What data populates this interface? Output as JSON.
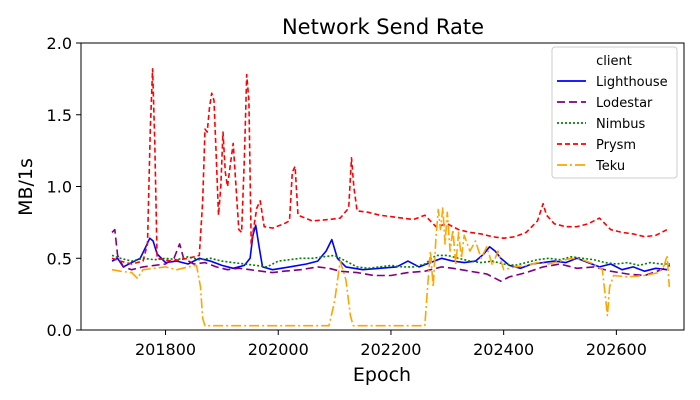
{
  "chart_data": {
    "type": "line",
    "title": "Network Send Rate",
    "xlabel": "Epoch",
    "ylabel": "MB/1s",
    "xlim": [
      201650,
      202720
    ],
    "ylim": [
      0.0,
      2.0
    ],
    "xticks": [
      201800,
      202000,
      202200,
      202400,
      202600
    ],
    "xtick_labels": [
      "201800",
      "202000",
      "202200",
      "202400",
      "202600"
    ],
    "yticks": [
      0.0,
      0.5,
      1.0,
      1.5,
      2.0
    ],
    "ytick_labels": [
      "0.0",
      "0.5",
      "1.0",
      "1.5",
      "2.0"
    ],
    "grid": false,
    "legend": {
      "title": "client",
      "placement": "top-right"
    },
    "series": [
      {
        "name": "Lighthouse",
        "color": "#0000ff",
        "dash": "solid",
        "points": [
          [
            201705,
            0.48
          ],
          [
            201715,
            0.5
          ],
          [
            201725,
            0.44
          ],
          [
            201740,
            0.47
          ],
          [
            201755,
            0.5
          ],
          [
            201765,
            0.58
          ],
          [
            201772,
            0.64
          ],
          [
            201778,
            0.62
          ],
          [
            201785,
            0.53
          ],
          [
            201800,
            0.47
          ],
          [
            201820,
            0.48
          ],
          [
            201840,
            0.46
          ],
          [
            201860,
            0.5
          ],
          [
            201880,
            0.48
          ],
          [
            201900,
            0.45
          ],
          [
            201920,
            0.43
          ],
          [
            201940,
            0.45
          ],
          [
            201950,
            0.5
          ],
          [
            201955,
            0.66
          ],
          [
            201960,
            0.73
          ],
          [
            201966,
            0.58
          ],
          [
            201972,
            0.44
          ],
          [
            201990,
            0.42
          ],
          [
            202020,
            0.44
          ],
          [
            202050,
            0.46
          ],
          [
            202070,
            0.48
          ],
          [
            202085,
            0.55
          ],
          [
            202095,
            0.63
          ],
          [
            202105,
            0.5
          ],
          [
            202120,
            0.44
          ],
          [
            202150,
            0.42
          ],
          [
            202180,
            0.43
          ],
          [
            202210,
            0.44
          ],
          [
            202230,
            0.48
          ],
          [
            202250,
            0.44
          ],
          [
            202270,
            0.47
          ],
          [
            202290,
            0.5
          ],
          [
            202310,
            0.48
          ],
          [
            202330,
            0.47
          ],
          [
            202350,
            0.48
          ],
          [
            202365,
            0.53
          ],
          [
            202375,
            0.58
          ],
          [
            202385,
            0.55
          ],
          [
            202395,
            0.5
          ],
          [
            202410,
            0.45
          ],
          [
            202430,
            0.43
          ],
          [
            202450,
            0.46
          ],
          [
            202470,
            0.47
          ],
          [
            202490,
            0.48
          ],
          [
            202510,
            0.47
          ],
          [
            202530,
            0.5
          ],
          [
            202550,
            0.47
          ],
          [
            202570,
            0.44
          ],
          [
            202590,
            0.46
          ],
          [
            202610,
            0.42
          ],
          [
            202630,
            0.44
          ],
          [
            202650,
            0.41
          ],
          [
            202670,
            0.43
          ],
          [
            202690,
            0.42
          ]
        ]
      },
      {
        "name": "Lodestar",
        "color": "#800080",
        "dash": "8,4",
        "points": [
          [
            201705,
            0.68
          ],
          [
            201710,
            0.7
          ],
          [
            201715,
            0.52
          ],
          [
            201725,
            0.44
          ],
          [
            201740,
            0.42
          ],
          [
            201760,
            0.44
          ],
          [
            201780,
            0.45
          ],
          [
            201800,
            0.46
          ],
          [
            201815,
            0.5
          ],
          [
            201825,
            0.6
          ],
          [
            201832,
            0.5
          ],
          [
            201850,
            0.46
          ],
          [
            201870,
            0.47
          ],
          [
            201890,
            0.44
          ],
          [
            201910,
            0.42
          ],
          [
            201930,
            0.43
          ],
          [
            201950,
            0.42
          ],
          [
            201970,
            0.41
          ],
          [
            201990,
            0.4
          ],
          [
            202010,
            0.41
          ],
          [
            202040,
            0.42
          ],
          [
            202070,
            0.44
          ],
          [
            202090,
            0.43
          ],
          [
            202110,
            0.41
          ],
          [
            202140,
            0.4
          ],
          [
            202170,
            0.38
          ],
          [
            202200,
            0.38
          ],
          [
            202230,
            0.4
          ],
          [
            202260,
            0.41
          ],
          [
            202290,
            0.44
          ],
          [
            202310,
            0.43
          ],
          [
            202340,
            0.41
          ],
          [
            202370,
            0.39
          ],
          [
            202395,
            0.34
          ],
          [
            202410,
            0.37
          ],
          [
            202440,
            0.4
          ],
          [
            202470,
            0.44
          ],
          [
            202500,
            0.46
          ],
          [
            202530,
            0.43
          ],
          [
            202560,
            0.44
          ],
          [
            202590,
            0.41
          ],
          [
            202620,
            0.39
          ],
          [
            202650,
            0.38
          ],
          [
            202680,
            0.42
          ],
          [
            202695,
            0.45
          ]
        ]
      },
      {
        "name": "Nimbus",
        "color": "#008000",
        "dash": "2,2",
        "points": [
          [
            201705,
            0.52
          ],
          [
            201720,
            0.5
          ],
          [
            201740,
            0.48
          ],
          [
            201760,
            0.5
          ],
          [
            201780,
            0.49
          ],
          [
            201800,
            0.5
          ],
          [
            201820,
            0.49
          ],
          [
            201840,
            0.51
          ],
          [
            201860,
            0.49
          ],
          [
            201880,
            0.5
          ],
          [
            201900,
            0.48
          ],
          [
            201920,
            0.47
          ],
          [
            201940,
            0.46
          ],
          [
            201960,
            0.45
          ],
          [
            201980,
            0.44
          ],
          [
            202000,
            0.48
          ],
          [
            202020,
            0.49
          ],
          [
            202040,
            0.5
          ],
          [
            202060,
            0.5
          ],
          [
            202080,
            0.51
          ],
          [
            202100,
            0.52
          ],
          [
            202120,
            0.48
          ],
          [
            202140,
            0.44
          ],
          [
            202160,
            0.43
          ],
          [
            202180,
            0.44
          ],
          [
            202200,
            0.45
          ],
          [
            202220,
            0.44
          ],
          [
            202240,
            0.44
          ],
          [
            202260,
            0.46
          ],
          [
            202280,
            0.52
          ],
          [
            202300,
            0.52
          ],
          [
            202320,
            0.5
          ],
          [
            202340,
            0.48
          ],
          [
            202360,
            0.47
          ],
          [
            202380,
            0.48
          ],
          [
            202400,
            0.46
          ],
          [
            202420,
            0.45
          ],
          [
            202440,
            0.47
          ],
          [
            202460,
            0.49
          ],
          [
            202480,
            0.5
          ],
          [
            202500,
            0.49
          ],
          [
            202520,
            0.51
          ],
          [
            202540,
            0.5
          ],
          [
            202560,
            0.49
          ],
          [
            202580,
            0.47
          ],
          [
            202600,
            0.46
          ],
          [
            202620,
            0.47
          ],
          [
            202640,
            0.45
          ],
          [
            202660,
            0.47
          ],
          [
            202680,
            0.46
          ],
          [
            202695,
            0.46
          ]
        ]
      },
      {
        "name": "Prysm",
        "color": "#ff0000",
        "dash": "5,3",
        "points": [
          [
            201705,
            0.5
          ],
          [
            201720,
            0.48
          ],
          [
            201740,
            0.46
          ],
          [
            201760,
            0.48
          ],
          [
            201768,
            0.6
          ],
          [
            201773,
            1.4
          ],
          [
            201777,
            1.82
          ],
          [
            201781,
            1.3
          ],
          [
            201785,
            0.5
          ],
          [
            201810,
            0.48
          ],
          [
            201840,
            0.5
          ],
          [
            201860,
            0.52
          ],
          [
            201866,
            0.9
          ],
          [
            201870,
            1.4
          ],
          [
            201874,
            1.38
          ],
          [
            201878,
            1.55
          ],
          [
            201882,
            1.65
          ],
          [
            201886,
            1.6
          ],
          [
            201890,
            1.2
          ],
          [
            201894,
            0.8
          ],
          [
            201898,
            1.0
          ],
          [
            201902,
            1.38
          ],
          [
            201906,
            1.1
          ],
          [
            201910,
            1.0
          ],
          [
            201915,
            1.15
          ],
          [
            201920,
            1.3
          ],
          [
            201925,
            1.0
          ],
          [
            201930,
            0.7
          ],
          [
            201935,
            0.68
          ],
          [
            201940,
            1.2
          ],
          [
            201944,
            1.78
          ],
          [
            201948,
            1.6
          ],
          [
            201952,
            0.6
          ],
          [
            201956,
            0.7
          ],
          [
            201962,
            0.85
          ],
          [
            201968,
            0.9
          ],
          [
            201975,
            0.72
          ],
          [
            201990,
            0.71
          ],
          [
            202010,
            0.74
          ],
          [
            202020,
            0.76
          ],
          [
            202025,
            1.1
          ],
          [
            202030,
            1.14
          ],
          [
            202035,
            0.8
          ],
          [
            202060,
            0.76
          ],
          [
            202090,
            0.77
          ],
          [
            202110,
            0.78
          ],
          [
            202125,
            0.85
          ],
          [
            202130,
            1.2
          ],
          [
            202134,
            1.0
          ],
          [
            202140,
            0.83
          ],
          [
            202160,
            0.82
          ],
          [
            202180,
            0.8
          ],
          [
            202200,
            0.79
          ],
          [
            202220,
            0.78
          ],
          [
            202240,
            0.77
          ],
          [
            202260,
            0.8
          ],
          [
            202280,
            0.72
          ],
          [
            202300,
            0.74
          ],
          [
            202320,
            0.7
          ],
          [
            202340,
            0.68
          ],
          [
            202360,
            0.67
          ],
          [
            202380,
            0.65
          ],
          [
            202400,
            0.64
          ],
          [
            202420,
            0.65
          ],
          [
            202440,
            0.68
          ],
          [
            202460,
            0.76
          ],
          [
            202470,
            0.88
          ],
          [
            202476,
            0.8
          ],
          [
            202490,
            0.74
          ],
          [
            202510,
            0.72
          ],
          [
            202530,
            0.72
          ],
          [
            202550,
            0.74
          ],
          [
            202570,
            0.78
          ],
          [
            202590,
            0.7
          ],
          [
            202610,
            0.68
          ],
          [
            202630,
            0.67
          ],
          [
            202650,
            0.65
          ],
          [
            202670,
            0.66
          ],
          [
            202690,
            0.7
          ]
        ]
      },
      {
        "name": "Teku",
        "color": "#ffa500",
        "dash": "10,3,2,3",
        "points": [
          [
            201705,
            0.42
          ],
          [
            201720,
            0.41
          ],
          [
            201740,
            0.4
          ],
          [
            201750,
            0.36
          ],
          [
            201760,
            0.42
          ],
          [
            201780,
            0.43
          ],
          [
            201800,
            0.44
          ],
          [
            201820,
            0.42
          ],
          [
            201840,
            0.44
          ],
          [
            201855,
            0.45
          ],
          [
            201862,
            0.3
          ],
          [
            201866,
            0.08
          ],
          [
            201870,
            0.03
          ],
          [
            201920,
            0.03
          ],
          [
            201960,
            0.03
          ],
          [
            202000,
            0.03
          ],
          [
            202040,
            0.03
          ],
          [
            202090,
            0.03
          ],
          [
            202100,
            0.2
          ],
          [
            202110,
            0.48
          ],
          [
            202120,
            0.35
          ],
          [
            202128,
            0.1
          ],
          [
            202133,
            0.03
          ],
          [
            202180,
            0.03
          ],
          [
            202220,
            0.03
          ],
          [
            202260,
            0.03
          ],
          [
            202265,
            0.3
          ],
          [
            202270,
            0.55
          ],
          [
            202275,
            0.3
          ],
          [
            202280,
            0.65
          ],
          [
            202284,
            0.84
          ],
          [
            202288,
            0.7
          ],
          [
            202292,
            0.85
          ],
          [
            202296,
            0.6
          ],
          [
            202300,
            0.82
          ],
          [
            202305,
            0.55
          ],
          [
            202310,
            0.7
          ],
          [
            202315,
            0.45
          ],
          [
            202320,
            0.68
          ],
          [
            202325,
            0.5
          ],
          [
            202330,
            0.66
          ],
          [
            202340,
            0.55
          ],
          [
            202350,
            0.62
          ],
          [
            202360,
            0.5
          ],
          [
            202370,
            0.58
          ],
          [
            202380,
            0.45
          ],
          [
            202390,
            0.55
          ],
          [
            202400,
            0.42
          ],
          [
            202420,
            0.44
          ],
          [
            202440,
            0.45
          ],
          [
            202460,
            0.47
          ],
          [
            202480,
            0.46
          ],
          [
            202500,
            0.48
          ],
          [
            202520,
            0.5
          ],
          [
            202540,
            0.49
          ],
          [
            202560,
            0.46
          ],
          [
            202575,
            0.42
          ],
          [
            202580,
            0.25
          ],
          [
            202584,
            0.1
          ],
          [
            202588,
            0.3
          ],
          [
            202595,
            0.38
          ],
          [
            202620,
            0.37
          ],
          [
            202650,
            0.38
          ],
          [
            202675,
            0.4
          ],
          [
            202685,
            0.45
          ],
          [
            202690,
            0.52
          ],
          [
            202694,
            0.3
          ]
        ]
      }
    ]
  }
}
